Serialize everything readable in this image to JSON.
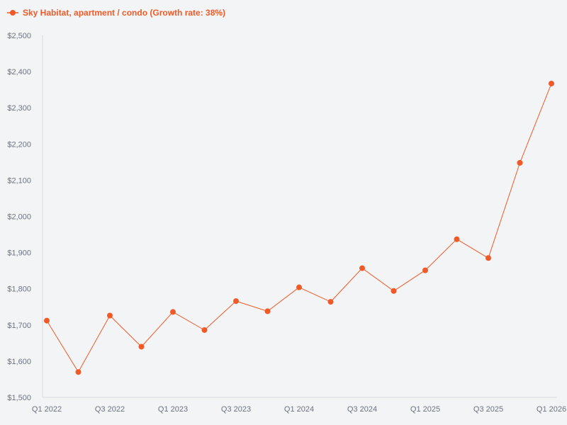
{
  "chart_data": {
    "type": "line",
    "title": "",
    "xlabel": "",
    "ylabel": "",
    "x": [
      "Q1 2022",
      "Q2 2022",
      "Q3 2022",
      "Q4 2022",
      "Q1 2023",
      "Q2 2023",
      "Q3 2023",
      "Q4 2023",
      "Q1 2024",
      "Q2 2024",
      "Q3 2024",
      "Q4 2024",
      "Q1 2025",
      "Q2 2025",
      "Q3 2025",
      "Q4 2025",
      "Q1 2026"
    ],
    "x_tick_labels": [
      "Q1 2022",
      "Q3 2022",
      "Q1 2023",
      "Q3 2023",
      "Q1 2024",
      "Q3 2024",
      "Q1 2025",
      "Q3 2025",
      "Q1 2026"
    ],
    "series": [
      {
        "name": "Sky Habitat, apartment / condo (Growth rate: 38%)",
        "values": [
          1712,
          1570,
          1726,
          1640,
          1736,
          1686,
          1766,
          1738,
          1804,
          1764,
          1857,
          1794,
          1851,
          1937,
          1885,
          2148,
          2367
        ]
      }
    ],
    "ylim": [
      1500,
      2500
    ],
    "y_ticks": [
      1500,
      1600,
      1700,
      1800,
      1900,
      2000,
      2100,
      2200,
      2300,
      2400,
      2500
    ],
    "y_tick_labels": [
      "$1,500",
      "$1,600",
      "$1,700",
      "$1,800",
      "$1,900",
      "$2,000",
      "$2,100",
      "$2,200",
      "$2,300",
      "$2,400",
      "$2,500"
    ],
    "grid": false,
    "legend_position": "top-left",
    "colors": {
      "series": "#ef5a28",
      "axis": "#d6d9e0",
      "tick_text": "#6b7280",
      "background": "#f3f4f6"
    }
  }
}
